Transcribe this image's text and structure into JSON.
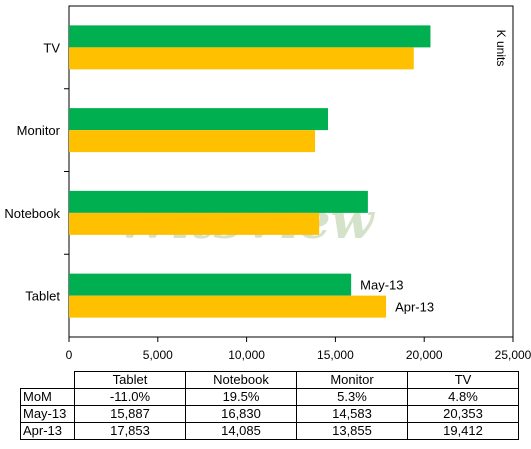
{
  "chart_data": {
    "type": "bar",
    "orientation": "horizontal",
    "categories": [
      "Tablet",
      "Notebook",
      "Monitor",
      "TV"
    ],
    "series": [
      {
        "name": "May-13",
        "values": [
          15887,
          16830,
          14583,
          20353
        ],
        "color": "#00b050"
      },
      {
        "name": "Apr-13",
        "values": [
          17853,
          14085,
          13855,
          19412
        ],
        "color": "#ffc000"
      }
    ],
    "xlim": [
      0,
      25000
    ],
    "xticks": [
      0,
      5000,
      10000,
      15000,
      20000,
      25000
    ],
    "xtick_labels": [
      "0",
      "5,000",
      "10,000",
      "15,000",
      "20,000",
      "25,000"
    ],
    "unit_label": "K units",
    "grid": false,
    "watermark": "WitsView",
    "table": {
      "columns": [
        "Tablet",
        "Notebook",
        "Monitor",
        "TV"
      ],
      "rows": [
        {
          "label": "MoM",
          "cells": [
            "-11.0%",
            "19.5%",
            "5.3%",
            "4.8%"
          ]
        },
        {
          "label": "May-13",
          "cells": [
            "15,887",
            "16,830",
            "14,583",
            "20,353"
          ]
        },
        {
          "label": "Apr-13",
          "cells": [
            "17,853",
            "14,085",
            "13,855",
            "19,412"
          ]
        }
      ]
    }
  }
}
